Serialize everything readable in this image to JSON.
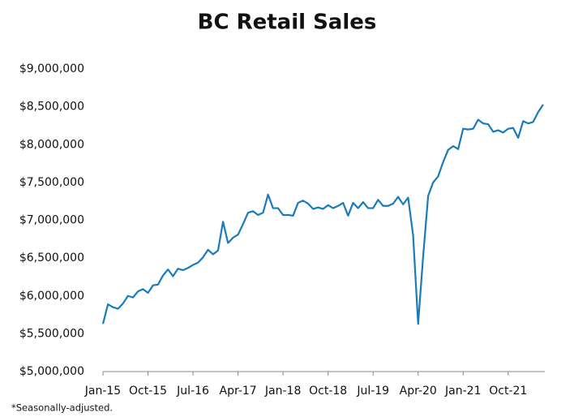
{
  "chart_data": {
    "type": "line",
    "title": "BC Retail Sales",
    "footnote": "*Seasonally-adjusted.",
    "categories": [
      "Jan-15",
      null,
      null,
      null,
      null,
      null,
      null,
      null,
      null,
      "Oct-15",
      null,
      null,
      null,
      null,
      null,
      null,
      null,
      null,
      "Jul-16",
      null,
      null,
      null,
      null,
      null,
      null,
      null,
      null,
      "Apr-17",
      null,
      null,
      null,
      null,
      null,
      null,
      null,
      null,
      "Jan-18",
      null,
      null,
      null,
      null,
      null,
      null,
      null,
      null,
      "Oct-18",
      null,
      null,
      null,
      null,
      null,
      null,
      null,
      null,
      "Jul-19",
      null,
      null,
      null,
      null,
      null,
      null,
      null,
      null,
      "Apr-20",
      null,
      null,
      null,
      null,
      null,
      null,
      null,
      null,
      "Jan-21",
      null,
      null,
      null,
      null,
      null,
      null,
      null,
      null,
      "Oct-21",
      null,
      null,
      null,
      null,
      null,
      null,
      null
    ],
    "series": [
      {
        "name": "BC Retail Sales",
        "color": "#1a7bb9",
        "values": [
          5630000,
          5890000,
          5850000,
          5830000,
          5900000,
          6000000,
          5980000,
          6060000,
          6090000,
          6040000,
          6140000,
          6150000,
          6270000,
          6350000,
          6260000,
          6360000,
          6340000,
          6370000,
          6410000,
          6440000,
          6510000,
          6610000,
          6550000,
          6600000,
          6980000,
          6700000,
          6770000,
          6810000,
          6950000,
          7100000,
          7120000,
          7070000,
          7100000,
          7340000,
          7160000,
          7160000,
          7070000,
          7070000,
          7060000,
          7230000,
          7260000,
          7220000,
          7150000,
          7170000,
          7150000,
          7200000,
          7160000,
          7190000,
          7230000,
          7060000,
          7230000,
          7160000,
          7240000,
          7160000,
          7160000,
          7270000,
          7190000,
          7190000,
          7220000,
          7310000,
          7210000,
          7300000,
          6800000,
          5630000,
          6520000,
          7320000,
          7500000,
          7580000,
          7770000,
          7930000,
          7980000,
          7940000,
          8210000,
          8200000,
          8210000,
          8330000,
          8280000,
          8270000,
          8170000,
          8190000,
          8160000,
          8210000,
          8220000,
          8090000,
          8310000,
          8280000,
          8300000,
          8430000,
          8530000
        ]
      }
    ],
    "ylim": [
      5000000,
      9000000
    ],
    "yticks": [
      {
        "value": 5000000,
        "label": "$5,000,000"
      },
      {
        "value": 5500000,
        "label": "$5,500,000"
      },
      {
        "value": 6000000,
        "label": "$6,000,000"
      },
      {
        "value": 6500000,
        "label": "$6,500,000"
      },
      {
        "value": 7000000,
        "label": "$7,000,000"
      },
      {
        "value": 7500000,
        "label": "$7,500,000"
      },
      {
        "value": 8000000,
        "label": "$8,000,000"
      },
      {
        "value": 8500000,
        "label": "$8,500,000"
      },
      {
        "value": 9000000,
        "label": "$9,000,000"
      }
    ],
    "grid": false
  }
}
